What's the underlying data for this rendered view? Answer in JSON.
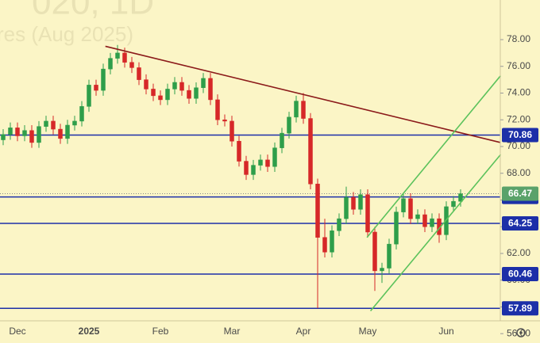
{
  "chart_data": {
    "type": "candlestick",
    "watermark": [
      "020, 1D",
      "res (Aug 2025)"
    ],
    "categories": [
      null,
      null,
      "Dec",
      null,
      null,
      null,
      null,
      null,
      null,
      null,
      null,
      null,
      "2025",
      null,
      null,
      null,
      null,
      null,
      null,
      null,
      null,
      null,
      "Feb",
      null,
      null,
      null,
      null,
      null,
      null,
      null,
      null,
      null,
      "Mar",
      null,
      null,
      null,
      null,
      null,
      null,
      null,
      null,
      null,
      "Apr",
      null,
      null,
      null,
      null,
      null,
      null,
      null,
      null,
      "May",
      null,
      null,
      null,
      null,
      null,
      null,
      null,
      null,
      null,
      null,
      "Jun",
      null,
      null
    ],
    "open": [
      70.5,
      70.9,
      71.4,
      70.8,
      71.2,
      70.3,
      71.5,
      71.9,
      71.3,
      70.6,
      71.6,
      71.9,
      73.0,
      74.6,
      74.2,
      75.8,
      76.6,
      77.0,
      76.3,
      75.9,
      75.0,
      74.3,
      73.8,
      73.5,
      74.3,
      74.8,
      74.2,
      73.6,
      74.4,
      75.1,
      73.5,
      72.0,
      71.9,
      70.4,
      68.9,
      67.9,
      68.6,
      69.0,
      68.5,
      69.9,
      71.0,
      72.2,
      73.4,
      72.1,
      67.2,
      63.2,
      62.1,
      63.7,
      64.6,
      66.2,
      65.3,
      66.4,
      63.6,
      60.7,
      60.9,
      62.7,
      65.1,
      66.1,
      64.6,
      64.9,
      64.0,
      64.6,
      63.4,
      65.5,
      65.9
    ],
    "high": [
      71.3,
      71.8,
      71.8,
      71.6,
      71.6,
      71.9,
      72.3,
      72.3,
      71.7,
      72.0,
      72.3,
      73.4,
      75.0,
      75.0,
      76.2,
      77.0,
      77.6,
      77.4,
      76.7,
      76.3,
      75.4,
      74.7,
      74.2,
      74.7,
      75.2,
      75.2,
      74.6,
      74.8,
      75.5,
      75.5,
      73.9,
      72.4,
      72.3,
      70.8,
      69.3,
      69.0,
      69.4,
      69.4,
      70.3,
      71.4,
      72.6,
      73.8,
      74.0,
      72.5,
      67.6,
      64.6,
      64.1,
      65.0,
      67.0,
      66.6,
      66.8,
      66.8,
      64.0,
      61.3,
      63.1,
      65.5,
      66.5,
      66.5,
      65.3,
      65.3,
      65.0,
      65.0,
      65.9,
      66.3,
      66.8
    ],
    "low": [
      70.1,
      70.5,
      70.4,
      70.4,
      69.9,
      69.9,
      71.1,
      70.9,
      70.2,
      70.2,
      71.2,
      71.5,
      72.6,
      73.8,
      73.8,
      75.4,
      76.2,
      75.9,
      75.5,
      74.6,
      73.9,
      73.4,
      73.1,
      73.1,
      73.9,
      73.8,
      73.2,
      73.2,
      74.0,
      73.1,
      71.6,
      71.5,
      70.0,
      68.5,
      67.5,
      67.5,
      68.2,
      68.1,
      68.1,
      69.5,
      70.6,
      71.8,
      71.7,
      66.8,
      57.9,
      61.7,
      61.7,
      63.3,
      64.2,
      64.9,
      64.9,
      63.2,
      59.2,
      59.8,
      60.5,
      62.3,
      64.7,
      64.2,
      64.2,
      63.6,
      63.6,
      62.8,
      63.0,
      65.1,
      65.5
    ],
    "close": [
      70.9,
      71.4,
      70.8,
      71.2,
      70.3,
      71.5,
      71.9,
      71.3,
      70.6,
      71.6,
      71.9,
      73.0,
      74.6,
      74.2,
      75.8,
      76.6,
      77.0,
      76.3,
      75.9,
      75.0,
      74.3,
      73.8,
      73.5,
      74.3,
      74.8,
      74.2,
      73.6,
      74.4,
      75.1,
      73.5,
      72.0,
      71.9,
      70.4,
      68.9,
      67.9,
      68.6,
      69.0,
      68.5,
      69.9,
      71.0,
      72.2,
      73.4,
      72.1,
      67.2,
      63.2,
      62.1,
      63.7,
      64.6,
      66.2,
      65.3,
      66.4,
      63.6,
      60.7,
      60.9,
      62.7,
      65.1,
      66.1,
      64.6,
      64.9,
      64.0,
      64.6,
      63.4,
      65.5,
      65.9,
      66.47
    ],
    "up_color": "#2e9e4a",
    "down_color": "#d62828",
    "levels": [
      70.86,
      66.23,
      64.25,
      60.46,
      57.89
    ],
    "level_color": "#1c2fa8",
    "last_price": 66.47,
    "last_color": "#5aa26a",
    "trendlines": [
      {
        "x": [
          14.3,
          69.6
        ],
        "y": [
          77.5,
          70.3
        ],
        "color": "#8b1a1a"
      },
      {
        "x": [
          50.9,
          69.6
        ],
        "y": [
          63.2,
          75.3
        ],
        "color": "#5cc25c"
      },
      {
        "x": [
          51.4,
          69.6
        ],
        "y": [
          57.7,
          69.4
        ],
        "color": "#5cc25c"
      }
    ],
    "ylim": [
      55.2,
      79.5
    ],
    "yticks": [
      {
        "value": 56,
        "label": "56.00"
      },
      {
        "value": 58,
        "label": "58.00"
      },
      {
        "value": 60,
        "label": "60.00"
      },
      {
        "value": 62,
        "label": "62.00"
      },
      {
        "value": 64,
        "label": "64.00"
      },
      {
        "value": 66,
        "label": "66.00"
      },
      {
        "value": 68,
        "label": "68.00"
      },
      {
        "value": 70,
        "label": "70.00"
      },
      {
        "value": 72,
        "label": "72.00"
      },
      {
        "value": 74,
        "label": "74.00"
      },
      {
        "value": 76,
        "label": "76.00"
      },
      {
        "value": 78,
        "label": "78.00"
      }
    ]
  }
}
